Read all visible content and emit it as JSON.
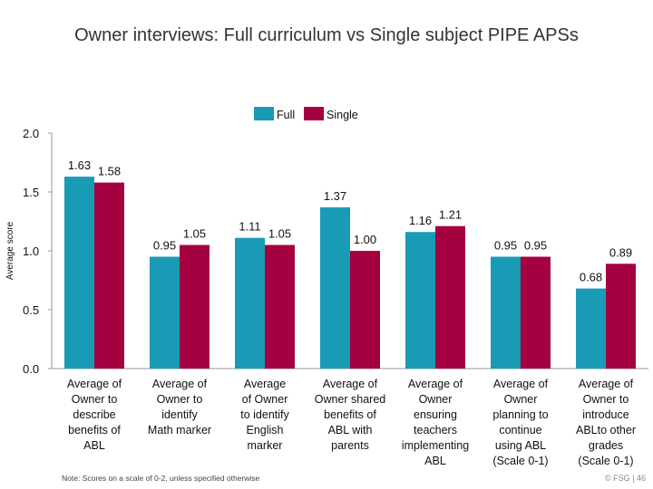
{
  "chart_data": {
    "type": "bar",
    "title": "Owner interviews: Full curriculum vs Single subject PIPE APSs",
    "y_label": "Average score",
    "categories": [
      "Average of\nOwner to\ndescribe\nbenefits of\nABL",
      "Average of\nOwner to\nidentify\nMath marker",
      "Average\nof Owner\nto identify\nEnglish\nmarker",
      "Average of\nOwner shared\nbenefits of\nABL with\nparents",
      "Average of\nOwner\nensuring\nteachers\nimplementing\nABL",
      "Average of\nOwner\nplanning to\ncontinue\nusing ABL\n(Scale 0-1)",
      "Average of\nOwner to\nintroduce\nABLto other\ngrades\n(Scale 0-1)"
    ],
    "series": [
      {
        "name": "Full",
        "color": "#1a9bb5",
        "values": [
          1.63,
          0.95,
          1.11,
          1.37,
          1.16,
          0.95,
          0.68
        ],
        "value_labels": [
          "1.63",
          "0.95",
          "1.11",
          "1.37",
          "1.16",
          "0.95",
          "0.68"
        ]
      },
      {
        "name": "Single",
        "color": "#a50040",
        "values": [
          1.58,
          1.05,
          1.05,
          1.0,
          1.21,
          0.95,
          0.89
        ],
        "value_labels": [
          "1.58",
          "1.05",
          "1.05",
          "1.00",
          "1.21",
          "0.95",
          "0.89"
        ]
      }
    ],
    "ylim": [
      0,
      2
    ],
    "yticks": [
      {
        "value": 0,
        "label": "0.0"
      },
      0.5,
      {
        "value": 1,
        "label": "1.0"
      },
      1.5,
      {
        "value": 2,
        "label": "2.0"
      }
    ],
    "legend": "top"
  },
  "footer": {
    "note": "Note: Scores on a scale of 0-2, unless specified otherwise",
    "copyright": "© FSG | 46"
  }
}
